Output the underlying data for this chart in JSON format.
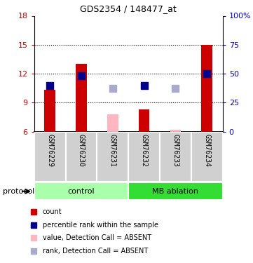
{
  "title": "GDS2354 / 148477_at",
  "samples": [
    "GSM76229",
    "GSM76230",
    "GSM76231",
    "GSM76232",
    "GSM76233",
    "GSM76234"
  ],
  "groups": [
    "control",
    "control",
    "control",
    "MB ablation",
    "MB ablation",
    "MB ablation"
  ],
  "group_colors": {
    "control": "#AAFFAA",
    "MB ablation": "#33DD33"
  },
  "ylim_left": [
    6,
    18
  ],
  "ylim_right": [
    0,
    100
  ],
  "yticks_left": [
    6,
    9,
    12,
    15,
    18
  ],
  "ytick_labels_left": [
    "6",
    "9",
    "12",
    "15",
    "18"
  ],
  "yticks_right": [
    0,
    25,
    50,
    75,
    100
  ],
  "ytick_labels_right": [
    "0",
    "25",
    "50",
    "75",
    "100%"
  ],
  "bar_values": [
    10.3,
    13.0,
    null,
    8.3,
    null,
    15.0
  ],
  "bar_absent_values": [
    null,
    null,
    7.8,
    null,
    6.2,
    null
  ],
  "rank_values": [
    10.8,
    11.8,
    null,
    10.8,
    null,
    12.0
  ],
  "rank_absent_values": [
    null,
    null,
    10.5,
    null,
    10.5,
    null
  ],
  "bar_color": "#CC0000",
  "bar_absent_color": "#FFB6C1",
  "rank_color": "#00008B",
  "rank_absent_color": "#AAAACC",
  "bar_width": 0.35,
  "rank_marker_size": 45,
  "left_tick_color": "#CC0000",
  "right_tick_color": "#0000CC",
  "legend_items": [
    {
      "color": "#CC0000",
      "label": "count"
    },
    {
      "color": "#00008B",
      "label": "percentile rank within the sample"
    },
    {
      "color": "#FFB6C1",
      "label": "value, Detection Call = ABSENT"
    },
    {
      "color": "#AAAACC",
      "label": "rank, Detection Call = ABSENT"
    }
  ],
  "protocol_label": "protocol",
  "figsize": [
    3.61,
    3.75
  ],
  "dpi": 100
}
